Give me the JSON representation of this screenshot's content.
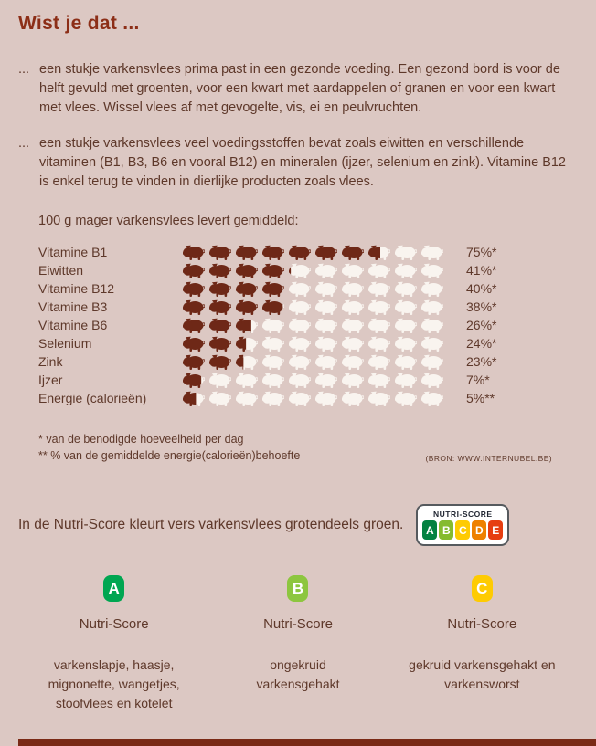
{
  "page": {
    "title": "Wist je dat ...",
    "bullets": [
      {
        "marker": "...",
        "text": "een stukje varkensvlees prima past in een gezonde voeding. Een gezond bord is voor de helft gevuld met groenten, voor een kwart met aardappelen of granen en voor een kwart met vlees. Wissel vlees af met gevogelte, vis, ei en peulvruchten."
      },
      {
        "marker": "...",
        "text": "een stukje varkensvlees veel voedingsstoffen bevat zoals eiwitten en verschillende vitaminen (B1, B3, B6 en vooral B12) en mineralen (ijzer, selenium en zink). Vitamine B12 is enkel terug te vinden in dierlijke producten zoals vlees."
      }
    ],
    "chart_intro": "100 g mager varkensvlees levert gemiddeld:"
  },
  "chart_data": {
    "type": "pictogram",
    "icon": "pig",
    "icons_per_row": 10,
    "unit_note": "percentage van dagelijkse behoefte per 100 g mager varkensvlees",
    "categories": [
      "Vitamine B1",
      "Eiwitten",
      "Vitamine B12",
      "Vitamine B3",
      "Vitamine B6",
      "Selenium",
      "Zink",
      "Ijzer",
      "Energie (calorieën)"
    ],
    "values": [
      75,
      41,
      40,
      38,
      26,
      24,
      23,
      7,
      5
    ],
    "value_labels": [
      "75%*",
      "41%*",
      "40%*",
      "38%*",
      "26%*",
      "24%*",
      "23%*",
      "7%*",
      "5%**"
    ],
    "filled_color": "#6e2817",
    "empty_color": "#f9f4ef"
  },
  "footnotes": {
    "line1": "* van de benodigde hoeveelheid per dag",
    "line2": "** % van de gemiddelde energie(calorieën)behoefte",
    "source": "(BRON: WWW.INTERNUBEL.BE)"
  },
  "nutriscore": {
    "sentence": "In de Nutri-Score kleurt vers varkensvlees grotendeels groen.",
    "logo": {
      "label": "NUTRI-SCORE",
      "letters": [
        "A",
        "B",
        "C",
        "D",
        "E"
      ],
      "colors": [
        "#038141",
        "#85bb2f",
        "#fecb02",
        "#ee8100",
        "#e63e11"
      ]
    },
    "columns": [
      {
        "grade": "A",
        "color": "#00a651",
        "title": "Nutri-Score",
        "description": "varkenslapje, haasje, mignonette, wangetjes, stoofvlees en kotelet"
      },
      {
        "grade": "B",
        "color": "#8dc63f",
        "title": "Nutri-Score",
        "description": "ongekruid varkensgehakt"
      },
      {
        "grade": "C",
        "color": "#fecb02",
        "title": "Nutri-Score",
        "description": "gekruid varkensgehakt en varkensworst"
      }
    ]
  },
  "colors": {
    "background": "#dcc8c3",
    "text": "#5e382a",
    "title": "#8c2e17",
    "footer_band": "#7a2a16"
  }
}
